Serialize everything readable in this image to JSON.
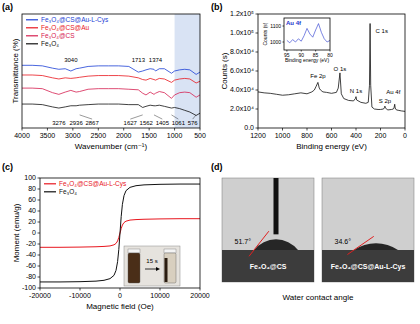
{
  "chart_data": [
    {
      "type": "line",
      "panel": "(a)",
      "xlabel": "Wavenumber (cm⁻¹)",
      "ylabel": "Transmittance (%)",
      "x": [
        4000,
        3800,
        3600,
        3400,
        3276,
        3150,
        3040,
        2936,
        2867,
        2700,
        2500,
        2300,
        2100,
        1900,
        1713,
        1627,
        1562,
        1480,
        1405,
        1374,
        1300,
        1200,
        1061,
        1000,
        900,
        800,
        700,
        576,
        500
      ],
      "xlim": [
        4000,
        500
      ],
      "xticks": [
        4000,
        3500,
        3000,
        2500,
        2000,
        1500,
        1000,
        500
      ],
      "ylim": [
        0,
        100
      ],
      "tick_labels": "x",
      "grid": false,
      "legend": "top-left",
      "shaded_range": [
        1000,
        500
      ],
      "series": [
        {
          "name": "Fe₃O₄@CS@Au-L-Cys",
          "color": "#1c3fd6",
          "values": [
            55,
            55,
            54.5,
            52.5,
            51.5,
            52,
            50,
            52,
            52.5,
            54,
            54.5,
            54.5,
            54.5,
            54,
            49,
            50,
            51,
            52,
            51.5,
            50,
            52,
            52,
            48,
            50,
            51,
            51.5,
            51,
            47,
            49
          ]
        },
        {
          "name": "Fe₃O₄@CS@Au",
          "color": "#e8161e",
          "values": [
            46.5,
            46.5,
            46,
            44,
            43,
            44,
            43.5,
            44,
            44.5,
            45.5,
            46,
            46,
            46,
            45.5,
            44,
            42.5,
            42,
            43.5,
            42.5,
            42,
            43.5,
            43,
            40,
            42,
            43,
            43.5,
            43,
            39.5,
            41
          ]
        },
        {
          "name": "Fe₃O₄@CS",
          "color": "#d62050",
          "values": [
            35,
            35,
            34.5,
            31,
            29.5,
            31.5,
            33,
            31.5,
            32,
            34,
            34.5,
            34.5,
            34.5,
            34,
            33.5,
            30.5,
            29,
            31.5,
            29.5,
            30.5,
            32,
            31,
            26,
            29,
            31,
            31.5,
            31,
            27,
            29
          ]
        },
        {
          "name": "Fe₃O₄",
          "color": "#111111",
          "values": [
            21,
            21,
            20.5,
            18.5,
            17.5,
            18.5,
            19.5,
            19.5,
            20,
            20.5,
            21,
            21,
            21,
            20.5,
            20.5,
            18,
            19,
            20,
            19.5,
            19.5,
            20,
            19,
            17.5,
            18,
            17,
            15.5,
            14,
            11,
            13
          ]
        }
      ],
      "annotations": [
        {
          "label": "3040",
          "x": 3040,
          "y": 58
        },
        {
          "label": "1713",
          "x": 1713,
          "y": 58
        },
        {
          "label": "1374",
          "x": 1374,
          "y": 58
        },
        {
          "label": "3276",
          "x": 3276,
          "y": 3
        },
        {
          "label": "2936",
          "x": 2936,
          "y": 3
        },
        {
          "label": "2867",
          "x": 2867,
          "y": 3
        },
        {
          "label": "1627",
          "x": 1627,
          "y": 3
        },
        {
          "label": "1562",
          "x": 1562,
          "y": 3
        },
        {
          "label": "1405",
          "x": 1405,
          "y": 3
        },
        {
          "label": "1061",
          "x": 1061,
          "y": 3
        },
        {
          "label": "576",
          "x": 576,
          "y": 3
        }
      ]
    },
    {
      "type": "line",
      "panel": "(b)",
      "xlabel": "Binding energy (eV)",
      "ylabel": "Counts (s)",
      "x": [
        1200,
        1150,
        1100,
        1050,
        1000,
        950,
        900,
        850,
        800,
        760,
        740,
        725,
        711,
        700,
        690,
        670,
        640,
        600,
        560,
        545,
        531,
        520,
        500,
        460,
        420,
        405,
        400,
        395,
        360,
        320,
        300,
        290,
        285,
        280,
        270,
        250,
        220,
        200,
        175,
        168,
        164,
        160,
        140,
        110,
        95,
        90,
        84,
        80,
        70,
        50,
        30,
        0
      ],
      "xlim": [
        1200,
        0
      ],
      "xticks": [
        1200,
        1000,
        800,
        600,
        400,
        200,
        0
      ],
      "ylim": [
        0,
        120000
      ],
      "yticks": [
        {
          "value": 0,
          "label": "0.0"
        },
        {
          "value": 20000,
          "label": "2.0x10⁴"
        },
        {
          "value": 40000,
          "label": "4.0x10⁴"
        },
        {
          "value": 60000,
          "label": "6.0x10⁴"
        },
        {
          "value": 80000,
          "label": "8.0x10⁴"
        },
        {
          "value": 100000,
          "label": "1.0x10⁵"
        },
        {
          "value": 120000,
          "label": "1.2x10⁵"
        }
      ],
      "grid": false,
      "series": [
        {
          "color": "#111111",
          "values": [
            38000,
            37000,
            36500,
            35500,
            34500,
            35000,
            36000,
            37000,
            36000,
            38000,
            40000,
            44000,
            48000,
            42000,
            40000,
            38000,
            37500,
            36500,
            37500,
            42000,
            58000,
            36000,
            31000,
            29000,
            28500,
            31000,
            33000,
            29500,
            27000,
            26000,
            27000,
            45000,
            110000,
            45000,
            22000,
            20000,
            19500,
            19500,
            20000,
            21500,
            23000,
            21000,
            19000,
            19500,
            20000,
            21000,
            25000,
            21000,
            19000,
            18500,
            18000,
            17500
          ]
        }
      ],
      "annotations": [
        {
          "label": "Fe 2p",
          "x": 711,
          "y": 53000
        },
        {
          "label": "O 1s",
          "x": 531,
          "y": 60000
        },
        {
          "label": "N 1s",
          "x": 400,
          "y": 37000
        },
        {
          "label": "C 1s",
          "x": 190,
          "y": 100000
        },
        {
          "label": "S 2p",
          "x": 164,
          "y": 26500
        },
        {
          "label": "Au 4f",
          "x": 95,
          "y": 36000
        }
      ]
    },
    {
      "type": "line",
      "title": "Au 4f",
      "xlabel": "Binding energy (eV)",
      "ylabel": "Counts (s)",
      "x": [
        95,
        94,
        93,
        92,
        91,
        90,
        89,
        88,
        87,
        86,
        85,
        84,
        83,
        82,
        81,
        80
      ],
      "xlim": [
        96,
        80
      ],
      "xticks": [
        95,
        90,
        85,
        80
      ],
      "ylim": [
        950,
        1150
      ],
      "yticks": [
        1000,
        1100
      ],
      "grid": false,
      "series": [
        {
          "color": "#2233cc",
          "values": [
            1010,
            995,
            1015,
            1000,
            1020,
            1005,
            1040,
            1085,
            1050,
            1030,
            1075,
            1115,
            1060,
            1020,
            1000,
            1010
          ]
        }
      ]
    },
    {
      "type": "line",
      "panel": "(c)",
      "xlabel": "Magnetic field (Oe)",
      "ylabel": "Moment (emu/g)",
      "x": [
        -20000,
        -15000,
        -10000,
        -6000,
        -4000,
        -2500,
        -1500,
        -1000,
        -600,
        -300,
        0,
        300,
        600,
        1000,
        1500,
        2500,
        4000,
        6000,
        10000,
        15000,
        20000
      ],
      "xlim": [
        -20000,
        20000
      ],
      "xticks": [
        -20000,
        -10000,
        0,
        10000,
        20000
      ],
      "ylim": [
        -100,
        100
      ],
      "yticks": [
        -100,
        -80,
        -60,
        -40,
        -20,
        0,
        20,
        40,
        60,
        80,
        100
      ],
      "grid": false,
      "legend": "top-left",
      "series": [
        {
          "name": "Fe₃O₄@CS@Au-L-Cys",
          "color": "#e8161e",
          "values": [
            -26,
            -26,
            -25.6,
            -25,
            -24.4,
            -23.5,
            -21.5,
            -19,
            -14.5,
            -8,
            0,
            8,
            14.5,
            19,
            21.5,
            23.5,
            24.4,
            25,
            25.6,
            26,
            26
          ]
        },
        {
          "name": "Fe₃O₄",
          "color": "#111111",
          "values": [
            -89,
            -89,
            -88.5,
            -87.5,
            -86,
            -83,
            -77,
            -68,
            -52,
            -30,
            0,
            30,
            52,
            68,
            77,
            83,
            86,
            87.5,
            88.5,
            89,
            89
          ]
        }
      ],
      "annotations": [
        {
          "label": "15 s",
          "x": 8000,
          "y": -60
        }
      ]
    }
  ],
  "panel_d": {
    "panel": "(d)",
    "title": "Water contact angle",
    "samples": [
      {
        "label": "Fe₃O₄@CS",
        "angle": 51.7,
        "angle_label": "51.7°"
      },
      {
        "label": "Fe₃O₄@CS@Au-L-Cys",
        "angle": 34.6,
        "angle_label": "34.6°"
      }
    ]
  }
}
